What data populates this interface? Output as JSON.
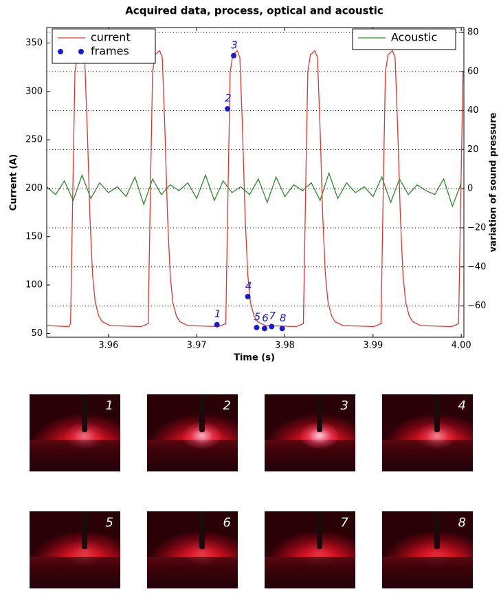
{
  "chart_data": {
    "type": "line",
    "title": "Acquired data, process, optical and acoustic",
    "xlabel": "Time (s)",
    "ylabel": "Current (A)",
    "y2label": "variation of sound pressure",
    "xlim": [
      3.953,
      4.0003
    ],
    "xticks": [
      3.96,
      3.97,
      3.98,
      3.99,
      {
        "value": 4,
        "label": "4.00"
      }
    ],
    "ylim": [
      46,
      366
    ],
    "yticks": [
      50,
      100,
      150,
      200,
      250,
      300,
      350
    ],
    "y2lim": [
      -76,
      82.5
    ],
    "y2ticks": [
      {
        "value": -60,
        "label": "−60"
      },
      {
        "value": -40,
        "label": "−40"
      },
      {
        "value": -20,
        "label": "−20"
      },
      0,
      20,
      40,
      60,
      80
    ],
    "y2grid": true,
    "legend": "upper left",
    "y2legend": "upper right",
    "series": [
      {
        "name": "current",
        "color": "#e8332b",
        "x": [
          3.953,
          3.9555,
          3.9557,
          3.956,
          3.9562,
          3.9565,
          3.957,
          3.9573,
          3.9576,
          3.9579,
          3.9582,
          3.9585,
          3.9589,
          3.9593,
          3.9602,
          3.9637,
          3.9645,
          3.9648,
          3.965,
          3.9653,
          3.9658,
          3.9661,
          3.9664,
          3.9667,
          3.967,
          3.9673,
          3.9677,
          3.9681,
          3.969,
          3.9725,
          3.9733,
          3.9736,
          3.9738,
          3.9741,
          3.9746,
          3.9749,
          3.9752,
          3.9755,
          3.9758,
          3.9761,
          3.9765,
          3.9769,
          3.9778,
          3.9813,
          3.9821,
          3.9824,
          3.9826,
          3.9829,
          3.9834,
          3.9837,
          3.984,
          3.9843,
          3.9846,
          3.9849,
          3.9853,
          3.9857,
          3.9866,
          3.9901,
          3.9909,
          3.9912,
          3.9914,
          3.9917,
          3.9922,
          3.9925,
          3.9928,
          3.9931,
          3.9934,
          3.9937,
          3.9941,
          3.9945,
          3.9954,
          3.9989,
          3.9997,
          4.0,
          4.0002
        ],
        "values": [
          58,
          57,
          60,
          220,
          320,
          338,
          342,
          335,
          260,
          170,
          110,
          82,
          68,
          62,
          58,
          57,
          60,
          220,
          320,
          338,
          342,
          335,
          260,
          170,
          110,
          82,
          68,
          62,
          58,
          57,
          60,
          220,
          320,
          338,
          342,
          335,
          260,
          170,
          110,
          82,
          68,
          62,
          58,
          57,
          60,
          220,
          320,
          338,
          342,
          335,
          260,
          170,
          110,
          82,
          68,
          62,
          58,
          57,
          60,
          220,
          320,
          338,
          342,
          335,
          260,
          170,
          110,
          82,
          68,
          62,
          58,
          57,
          60,
          220,
          320
        ]
      },
      {
        "name": "frames",
        "type": "scatter",
        "color": "#1a1ad0",
        "x": [
          3.9723,
          3.9735,
          3.9742,
          3.9758,
          3.9768,
          3.9777,
          3.9785,
          3.9797
        ],
        "values": [
          59,
          282,
          337,
          88,
          56,
          55,
          57,
          55
        ],
        "labels": [
          "1",
          "2",
          "3",
          "4",
          "5",
          "6",
          "7",
          "8"
        ]
      },
      {
        "name": "Acoustic",
        "color": "#2a8a2a",
        "axis": "y2",
        "x": [
          3.953,
          3.954,
          3.955,
          3.956,
          3.957,
          3.958,
          3.959,
          3.96,
          3.961,
          3.962,
          3.963,
          3.964,
          3.965,
          3.966,
          3.967,
          3.968,
          3.969,
          3.97,
          3.971,
          3.972,
          3.973,
          3.974,
          3.975,
          3.976,
          3.977,
          3.978,
          3.979,
          3.98,
          3.981,
          3.982,
          3.983,
          3.984,
          3.985,
          3.986,
          3.987,
          3.988,
          3.989,
          3.99,
          3.991,
          3.992,
          3.993,
          3.994,
          3.995,
          3.996,
          3.997,
          3.998,
          3.999,
          4.0
        ],
        "values": [
          1,
          -3,
          4,
          -6,
          7,
          -5,
          3,
          -2,
          1,
          -4,
          6,
          -8,
          5,
          -3,
          2,
          -1,
          3,
          -5,
          7,
          -6,
          4,
          -2,
          1,
          -3,
          5,
          -7,
          6,
          -4,
          2,
          -1,
          3,
          -6,
          8,
          -5,
          3,
          -2,
          1,
          -4,
          6,
          -7,
          5,
          -3,
          2,
          -1,
          -3,
          5,
          -9,
          3
        ]
      }
    ]
  },
  "photos": {
    "labels": [
      "1",
      "2",
      "3",
      "4",
      "5",
      "6",
      "7",
      "8"
    ]
  }
}
